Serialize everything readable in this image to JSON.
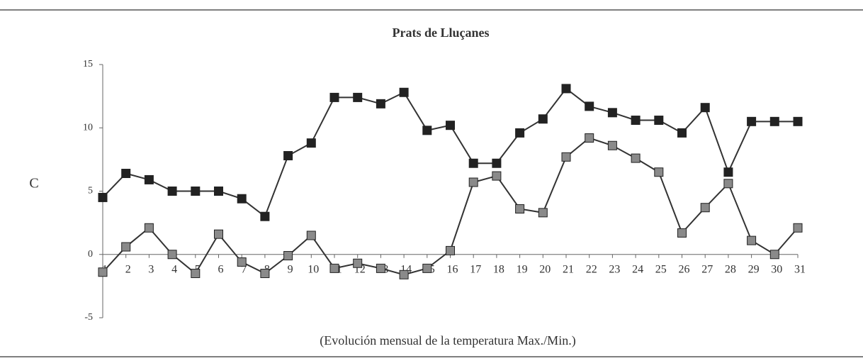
{
  "chart_data": {
    "type": "line",
    "title": "Prats de Lluçanes",
    "y_label": "C",
    "x_label": "(Evolución mensual de la temperatura Max./Min.)",
    "categories": [
      "1",
      "2",
      "3",
      "4",
      "5",
      "6",
      "7",
      "8",
      "9",
      "10",
      "11",
      "12",
      "13",
      "14",
      "15",
      "16",
      "17",
      "18",
      "19",
      "20",
      "21",
      "22",
      "23",
      "24",
      "25",
      "26",
      "27",
      "28",
      "29",
      "30",
      "31"
    ],
    "series": [
      {
        "color": "#222222",
        "values": [
          4.5,
          6.4,
          5.9,
          5.0,
          5.0,
          5.0,
          4.4,
          3.0,
          7.8,
          8.8,
          12.4,
          12.4,
          11.9,
          12.8,
          9.8,
          10.2,
          7.2,
          7.2,
          9.6,
          10.7,
          13.1,
          11.7,
          11.2,
          10.6,
          10.6,
          9.6,
          11.6,
          6.5,
          10.5,
          10.5,
          10.5
        ]
      },
      {
        "color": "#8a8a8a",
        "values": [
          -1.4,
          0.6,
          2.1,
          0.0,
          -1.5,
          1.6,
          -0.6,
          -1.5,
          -0.1,
          1.5,
          -1.1,
          -0.7,
          -1.1,
          -1.6,
          -1.1,
          0.3,
          5.7,
          6.2,
          3.6,
          3.3,
          7.7,
          9.2,
          8.6,
          7.6,
          6.5,
          1.7,
          3.7,
          5.6,
          1.1,
          0.0,
          2.1
        ]
      }
    ],
    "ylim": [
      -5,
      15
    ],
    "yticks": [
      -5,
      0,
      5,
      10,
      15
    ]
  }
}
